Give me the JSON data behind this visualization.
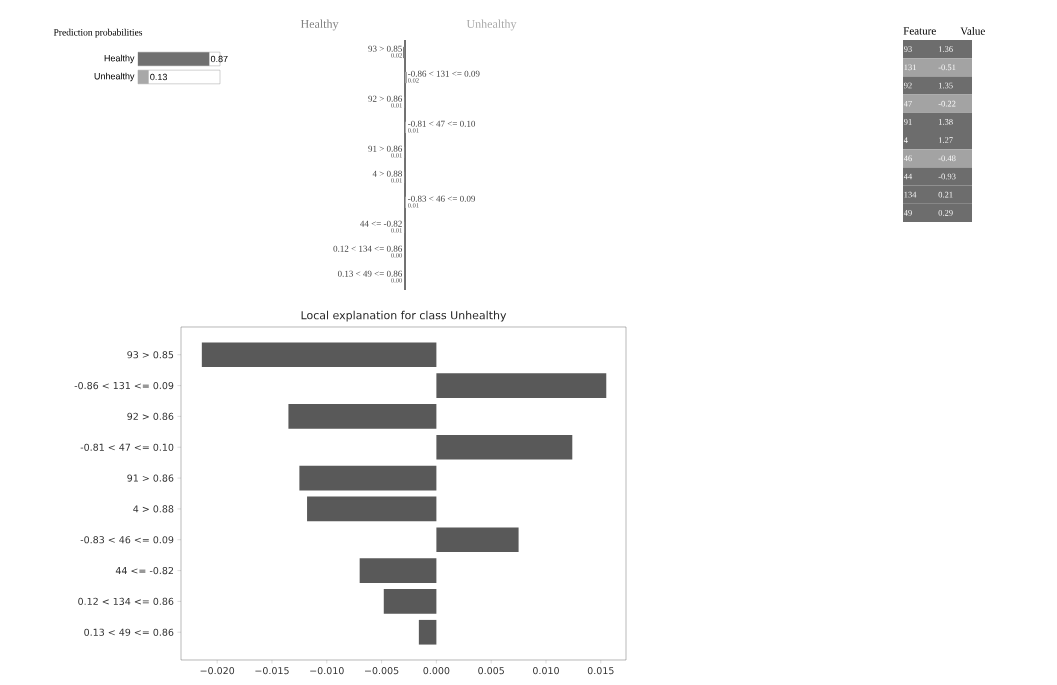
{
  "chart_data": [
    {
      "type": "bar",
      "orientation": "horizontal",
      "title": "Prediction probabilities",
      "categories": [
        "Healthy",
        "Unhealthy"
      ],
      "values": [
        0.87,
        0.13
      ],
      "colors": [
        "#707070",
        "#a8a8a8"
      ],
      "xlim": [
        0,
        1
      ],
      "data_labels": true
    },
    {
      "type": "other",
      "categories": [
        "93 > 0.85",
        "-0.86 < 131 <= 0.09",
        "92 > 0.86",
        "-0.81 < 47 <= 0.10",
        "91 > 0.86",
        "4 > 0.88",
        "-0.83 < 46 <= 0.09",
        "44 <= -0.82",
        "0.12 < 134 <= 0.86",
        "0.13 < 49 <= 0.86"
      ],
      "series": [
        {
          "name": "Healthy",
          "color": "#808080",
          "values": [
            0.02,
            null,
            0.01,
            null,
            0.01,
            0.01,
            null,
            0.01,
            0.0,
            0.0
          ],
          "value_labels": [
            "0.02",
            null,
            "0.01",
            null,
            "0.01",
            "0.01",
            null,
            "0.01",
            "0.00",
            "0.00"
          ]
        },
        {
          "name": "Unhealthy",
          "color": "#a8a8a8",
          "values": [
            null,
            0.02,
            null,
            0.01,
            null,
            null,
            0.01,
            null,
            null,
            null
          ],
          "value_labels": [
            null,
            "0.02",
            null,
            "0.01",
            null,
            null,
            "0.01",
            null,
            null,
            null
          ]
        }
      ]
    },
    {
      "type": "other",
      "categories": [
        "Feature",
        "Value"
      ],
      "y_categories": [
        "93",
        "131",
        "92",
        "47",
        "91",
        "4",
        "46",
        "44",
        "134",
        "49"
      ],
      "cell_labels": [
        [
          "1.36"
        ],
        [
          "-0.51"
        ],
        [
          "1.35"
        ],
        [
          "-0.22"
        ],
        [
          "1.38"
        ],
        [
          "1.27"
        ],
        [
          "-0.48"
        ],
        [
          "-0.93"
        ],
        [
          "0.21"
        ],
        [
          "0.29"
        ]
      ],
      "colors": [
        "#6d6d6d",
        "#a3a3a3",
        "#6d6d6d",
        "#a3a3a3",
        "#6d6d6d",
        "#6d6d6d",
        "#a3a3a3",
        "#6d6d6d",
        "#6d6d6d",
        "#6d6d6d"
      ]
    },
    {
      "type": "bar",
      "orientation": "horizontal",
      "title": "Local explanation for class Unhealthy",
      "categories": [
        "93 > 0.85",
        "-0.86 < 131 <= 0.09",
        "92 > 0.86",
        "-0.81 < 47 <= 0.10",
        "91 > 0.86",
        "4 > 0.88",
        "-0.83 < 46 <= 0.09",
        "44 <= -0.82",
        "0.12 < 134 <= 0.86",
        "0.13 < 49 <= 0.86"
      ],
      "values": [
        -0.0214,
        0.0155,
        -0.0135,
        0.0124,
        -0.0125,
        -0.0118,
        0.0075,
        -0.007,
        -0.0048,
        -0.0016
      ],
      "color": "#595959",
      "xlim": [
        -0.0233,
        0.0173
      ],
      "xticks": [
        {
          "value": -0.02,
          "label": "−0.020"
        },
        {
          "value": -0.015,
          "label": "−0.015"
        },
        {
          "value": -0.01,
          "label": "−0.010"
        },
        {
          "value": -0.005,
          "label": "−0.005"
        },
        {
          "value": 0,
          "label": "0.000"
        },
        {
          "value": 0.005,
          "label": "0.005"
        },
        {
          "value": 0.01,
          "label": "0.010"
        },
        {
          "value": 0.015,
          "label": "0.015"
        }
      ]
    }
  ]
}
